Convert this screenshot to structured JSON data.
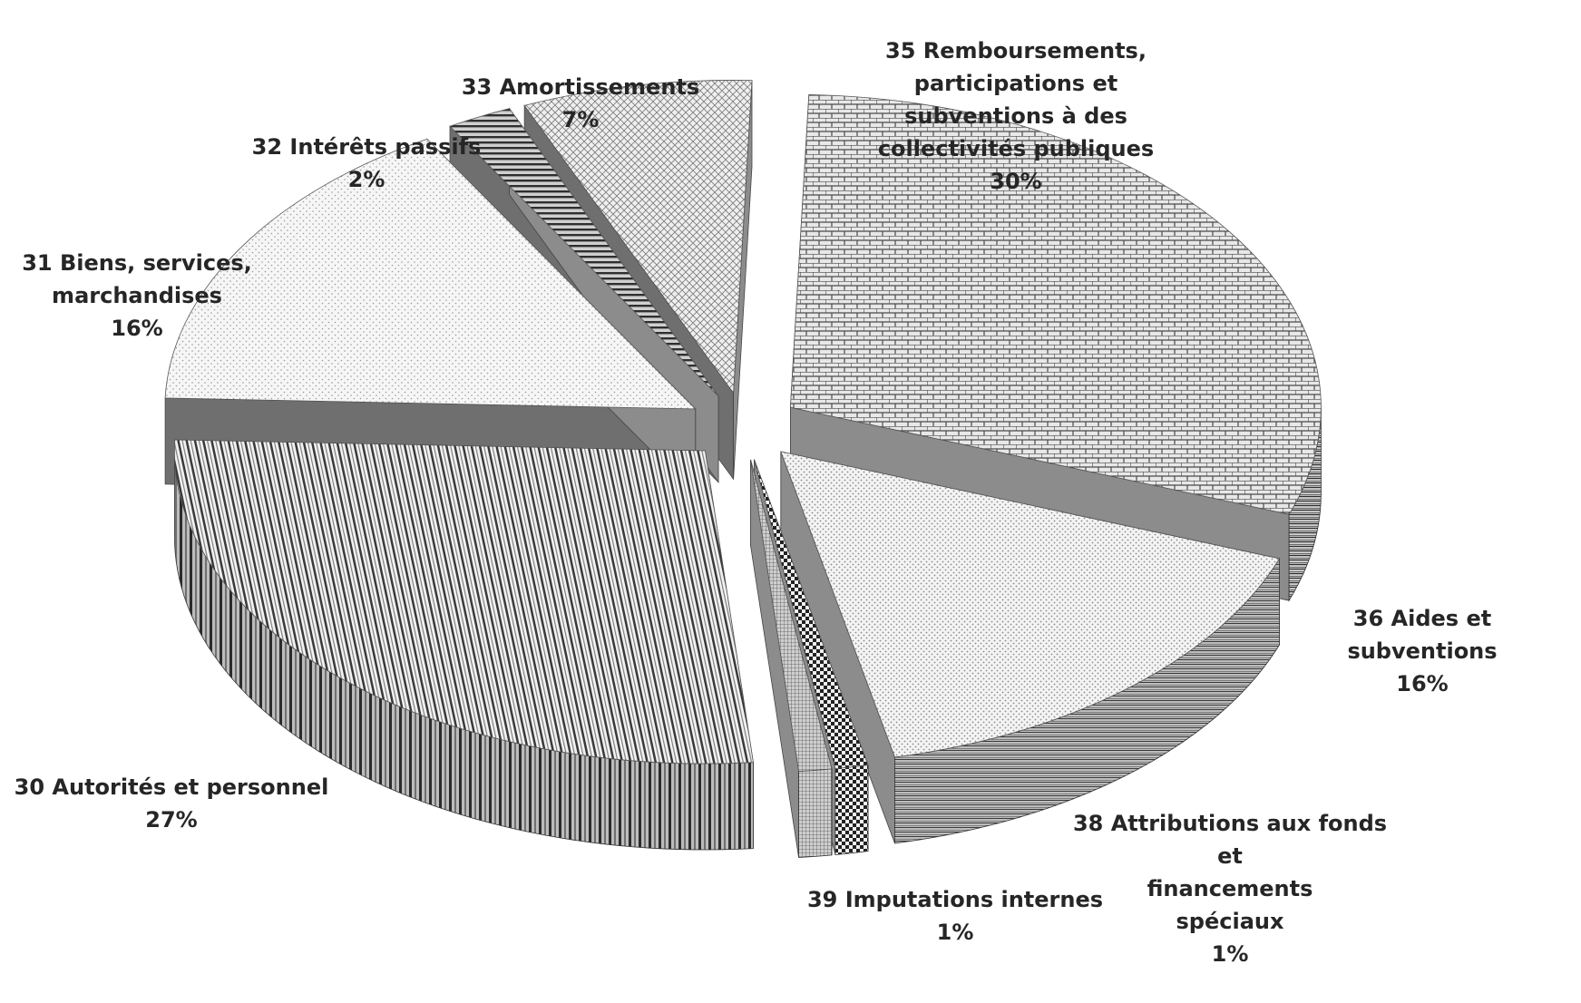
{
  "chart_data": {
    "type": "pie",
    "style": "3d-exploded-grayscale-patterned",
    "slices": [
      {
        "name": "35 Remboursements,\nparticipations et\nsubventions à des\ncollectivités publiques",
        "percent_label": "30%",
        "value": 30,
        "pattern": "bricks"
      },
      {
        "name": "36 Aides et subventions",
        "percent_label": "16%",
        "value": 16,
        "pattern": "dots-light"
      },
      {
        "name": "38 Attributions aux fonds\net\nfinancements\nspéciaux",
        "percent_label": "1%",
        "value": 1,
        "pattern": "checker"
      },
      {
        "name": "39 Imputations internes",
        "percent_label": "1%",
        "value": 1,
        "pattern": "fine-grid"
      },
      {
        "name": "30 Autorités et personnel",
        "percent_label": "27%",
        "value": 27,
        "pattern": "vertical-stripes"
      },
      {
        "name": "31 Biens, services,\nmarchandises",
        "percent_label": "16%",
        "value": 16,
        "pattern": "dots-sparse"
      },
      {
        "name": "32 Intérêts passifs",
        "percent_label": "2%",
        "value": 2,
        "pattern": "horizontal-stripes"
      },
      {
        "name": "33 Amortissements",
        "percent_label": "7%",
        "value": 7,
        "pattern": "crosshatch"
      }
    ],
    "legend": "none",
    "colors": {
      "label_text": "#262626",
      "dark": "#333333",
      "mid": "#7a7a7a",
      "light": "#d9d9d9"
    }
  }
}
